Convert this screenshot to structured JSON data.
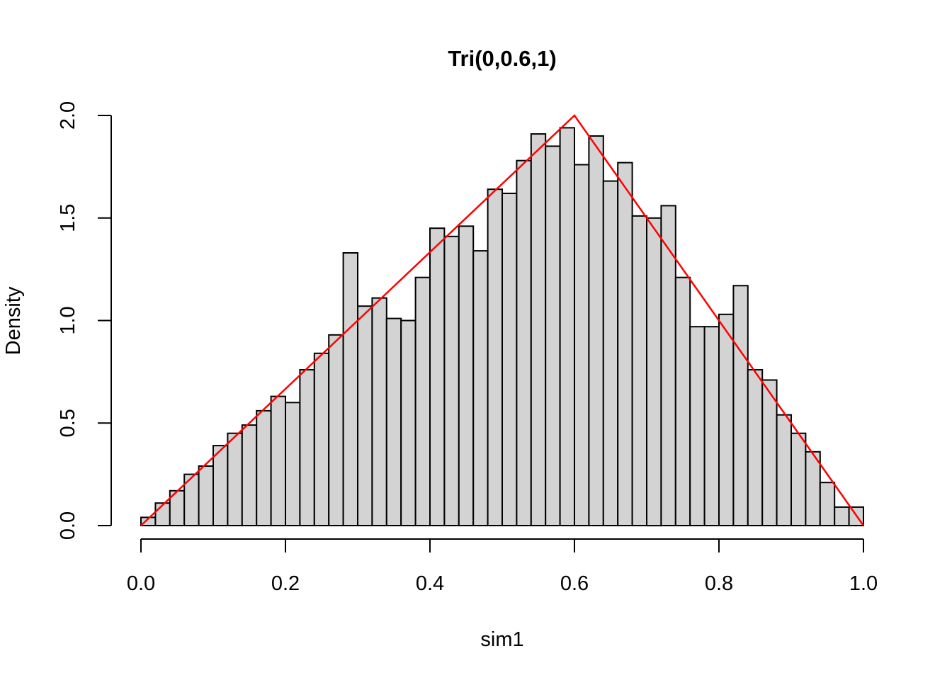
{
  "chart_data": {
    "type": "bar",
    "subtype": "histogram",
    "title": "Tri(0,0.6,1)",
    "xlabel": "sim1",
    "ylabel": "Density",
    "xlim": [
      0.0,
      1.0
    ],
    "ylim": [
      0.0,
      2.0
    ],
    "x_tick_labels": [
      "0.0",
      "0.2",
      "0.4",
      "0.6",
      "0.8",
      "1.0"
    ],
    "x_tick_values": [
      0.0,
      0.2,
      0.4,
      0.6,
      0.8,
      1.0
    ],
    "y_tick_labels": [
      "0.0",
      "0.5",
      "1.0",
      "1.5",
      "2.0"
    ],
    "y_tick_values": [
      0.0,
      0.5,
      1.0,
      1.5,
      2.0
    ],
    "grid": "off",
    "legend": "none",
    "bin_start": 0.0,
    "bin_width": 0.02,
    "densities": [
      0.04,
      0.11,
      0.17,
      0.25,
      0.29,
      0.39,
      0.45,
      0.49,
      0.56,
      0.63,
      0.6,
      0.76,
      0.84,
      0.93,
      1.33,
      1.07,
      1.11,
      1.01,
      1.0,
      1.21,
      1.45,
      1.41,
      1.46,
      1.34,
      1.64,
      1.62,
      1.78,
      1.91,
      1.85,
      1.94,
      1.76,
      1.9,
      1.68,
      1.77,
      1.51,
      1.5,
      1.56,
      1.21,
      0.97,
      0.97,
      1.03,
      1.17,
      0.76,
      0.71,
      0.54,
      0.45,
      0.36,
      0.21,
      0.09,
      0.09
    ],
    "bar_fill_color": "#D3D3D3",
    "bar_border_color": "#000000",
    "overlay_line": {
      "name": "triangular-density-curve",
      "color": "#FF0000",
      "points": [
        [
          0.0,
          0.0
        ],
        [
          0.6,
          2.0
        ],
        [
          1.0,
          0.0
        ]
      ]
    }
  }
}
